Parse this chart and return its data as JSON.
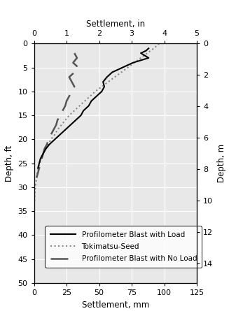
{
  "title_top": "Settlement, in",
  "xlabel": "Settlement, mm",
  "ylabel_left": "Depth, ft",
  "ylabel_right": "Depth, m",
  "xlim_mm": [
    0,
    125
  ],
  "xlim_in": [
    0,
    5
  ],
  "ylim_ft": [
    0,
    50
  ],
  "ylim_m": [
    0,
    15.24
  ],
  "xticks_mm": [
    0,
    25,
    50,
    75,
    100,
    125
  ],
  "xticks_in": [
    0,
    1,
    2,
    3,
    4,
    5
  ],
  "yticks_ft": [
    0,
    5,
    10,
    15,
    20,
    25,
    30,
    35,
    40,
    45,
    50
  ],
  "yticks_m": [
    0,
    2,
    4,
    6,
    8,
    10,
    12,
    14
  ],
  "profilometer_load": {
    "settlement_mm": [
      88,
      86,
      82,
      85,
      88,
      82,
      76,
      72,
      68,
      64,
      60,
      56,
      53,
      54,
      52,
      48,
      44,
      42,
      38,
      36,
      32,
      28,
      24,
      20,
      16,
      12,
      9,
      7,
      5,
      4,
      3
    ],
    "depth_ft": [
      1,
      1.5,
      2,
      2.5,
      3,
      3.5,
      4,
      4.5,
      5,
      5.5,
      6,
      7,
      8,
      9,
      10,
      11,
      12,
      13,
      14,
      15,
      16,
      17,
      18,
      19,
      20,
      21,
      22,
      23,
      24,
      25,
      26
    ],
    "color": "#000000",
    "linestyle": "solid",
    "linewidth": 1.5
  },
  "tokimatsu_seed": {
    "settlement_mm": [
      96,
      92,
      87,
      82,
      77,
      72,
      67,
      62,
      57,
      52,
      47,
      43,
      39,
      35,
      31,
      27,
      24,
      21,
      18,
      16,
      13,
      11,
      9,
      7,
      5.5,
      4.5,
      3.5,
      2.5,
      2.0,
      1.5,
      1.0,
      0.7,
      0.5,
      0.3,
      0.1
    ],
    "depth_ft": [
      0,
      1,
      2,
      3,
      4,
      5,
      6,
      7,
      8,
      9,
      10,
      11,
      12,
      13,
      14,
      15,
      16,
      17,
      18,
      19,
      20,
      21,
      22,
      23,
      24,
      25,
      26,
      27,
      28,
      29,
      30,
      31,
      32,
      33,
      34
    ],
    "color": "#888888",
    "linestyle": "dotted",
    "linewidth": 1.5
  },
  "profilometer_no_load": {
    "settlement_mm": [
      31,
      33,
      30,
      34,
      31,
      27,
      29,
      31,
      29,
      27,
      25,
      24,
      22,
      20,
      18,
      17,
      15,
      13,
      11,
      10,
      8,
      7,
      6,
      5,
      4,
      3,
      2
    ],
    "depth_ft": [
      2,
      3,
      4,
      5,
      6,
      7,
      8,
      9,
      10,
      11,
      12,
      13,
      14,
      15,
      16,
      17,
      18,
      19,
      20,
      21,
      22,
      23,
      24,
      25,
      26,
      27,
      28
    ],
    "color": "#555555",
    "linestyle": "dashed",
    "linewidth": 1.8,
    "dash_pattern": [
      10,
      5
    ]
  },
  "legend_labels": [
    "Profilometer Blast with Load",
    "Tokimatsu-Seed",
    "Profilometer Blast with No Load"
  ],
  "background_color": "#e8e8e8",
  "grid_color": "#ffffff",
  "fig_width": 3.47,
  "fig_height": 4.45,
  "dpi": 100
}
